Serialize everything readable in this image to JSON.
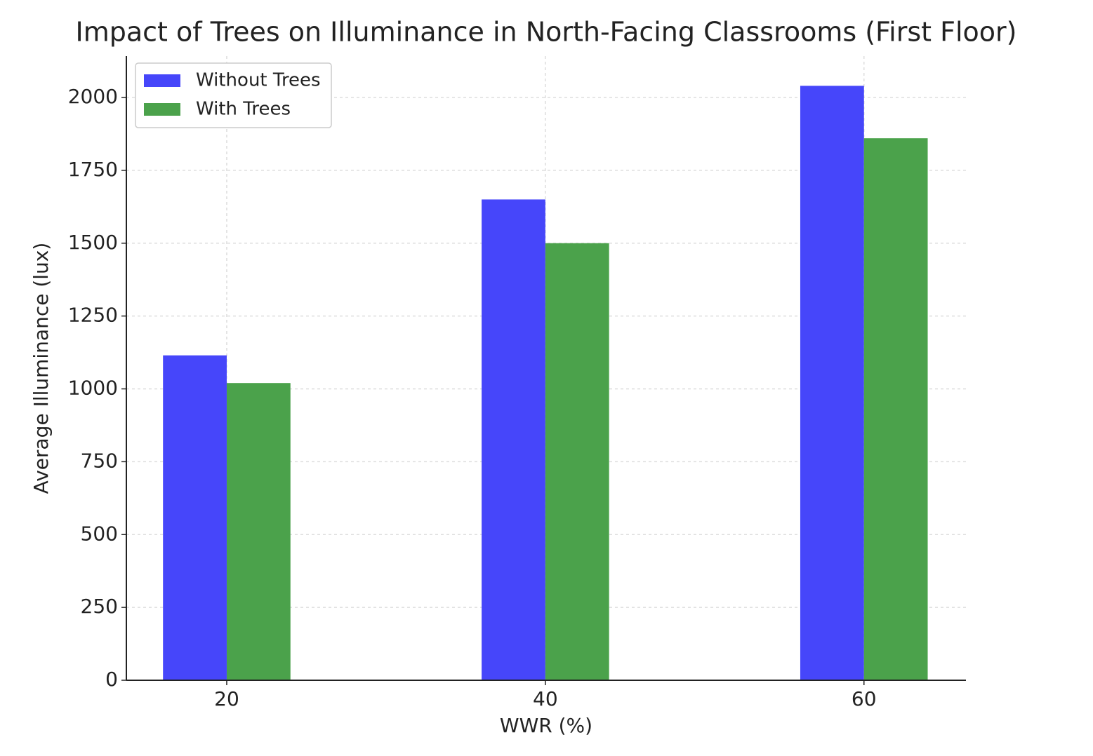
{
  "chart_data": {
    "type": "bar",
    "title": "Impact of Trees on Illuminance in North-Facing Classrooms (First Floor)",
    "x_label": "WWR (%)",
    "y_label": "Average Illuminance (lux)",
    "x": [
      20,
      40,
      60
    ],
    "series": [
      {
        "name": "Without Trees",
        "color": "#4646fa",
        "values": [
          1115,
          1650,
          2040
        ]
      },
      {
        "name": "With Trees",
        "color": "#4ba24b",
        "values": [
          1020,
          1500,
          1860
        ]
      }
    ],
    "xlim": [
      13.7,
      66.4
    ],
    "xticks": [
      20,
      40,
      60
    ],
    "ylim": [
      0,
      2142
    ],
    "yticks": [
      0,
      250,
      500,
      750,
      1000,
      1250,
      1500,
      1750,
      2000
    ],
    "grid": true,
    "legend": "upper left"
  }
}
